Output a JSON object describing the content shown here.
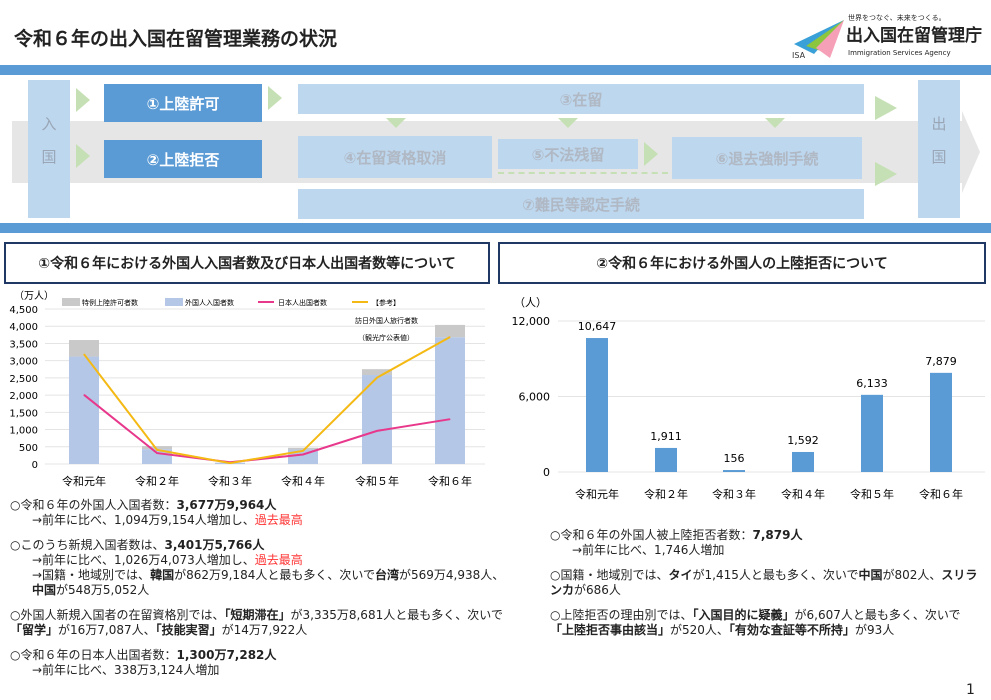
{
  "header": {
    "title": "令和６年の出入国在留管理業務の状況",
    "logo_tagline": "世界をつなぐ、未来をつくる。",
    "logo_name": "出入国在留管理庁",
    "logo_en": "Immigration Services Agency",
    "logo_abbr": "ISA"
  },
  "flow": {
    "entry": "入国",
    "exit": "出国",
    "s1": "①上陸許可",
    "s2": "②上陸拒否",
    "s3": "③在留",
    "s4": "④在留資格取消",
    "s5": "⑤不法残留",
    "s6": "⑥退去強制手続",
    "s7": "⑦難民等認定手続"
  },
  "section1": {
    "title": "①令和６年における外国人入国者数及び日本人出国者数等について",
    "bullets": [
      {
        "pre": "○令和６年の外国人入国者数：",
        "bold": "3,677万9,964人"
      },
      {
        "pre": "→前年に比べ、1,094万9,154人増加し、",
        "red": "過去最高"
      },
      {
        "pre": "○このうち新規入国者数は、",
        "bold": "3,401万5,766人"
      },
      {
        "pre": "→前年に比べ、1,026万4,073人増加し、",
        "red": "過去最高"
      },
      {
        "a": "→国籍・地域別では、",
        "b": "韓国",
        "c": "が862万9,184人と最も多く、次いで",
        "d": "台湾",
        "e": "が569万4,938人、",
        "f": "中国",
        "g": "が548万5,052人"
      },
      {
        "a": "○外国人新規入国者の在留資格別では、",
        "b": "「短期滞在」",
        "c": "が3,335万8,681人と最も多く、次いで",
        "d": "「留学」",
        "e": "が16万7,087人、",
        "f": "「技能実習」",
        "g": "が14万7,922人"
      },
      {
        "pre": "○令和６年の日本人出国者数：",
        "bold": "1,300万7,282人"
      },
      {
        "pre": "→前年に比べ、338万3,124人増加"
      }
    ]
  },
  "section2": {
    "title": "②令和６年における外国人の上陸拒否について",
    "bullets": [
      {
        "pre": "○令和６年の外国人被上陸拒否者数：",
        "bold": "7,879人"
      },
      {
        "pre": "→前年に比べ、1,746人増加"
      },
      {
        "a": "○国籍・地域別では、",
        "b": "タイ",
        "c": "が1,415人と最も多く、次いで",
        "d": "中国",
        "e": "が802人、",
        "f": "スリランカ",
        "g": "が686人"
      },
      {
        "a": "○上陸拒否の理由別では、",
        "b": "「入国目的に疑義」",
        "c": "が6,607人と最も多く、次いで",
        "d": "「上陸拒否事由該当」",
        "e": "が520人、",
        "f": "「有効な査証等不所持」",
        "g": "が93人"
      }
    ]
  },
  "page_number": "1",
  "chart_data": [
    {
      "type": "bar",
      "ylabel": "（万人）",
      "ylim": [
        0,
        4500
      ],
      "yticks": [
        "0",
        "500",
        "1,000",
        "1,500",
        "2,000",
        "2,500",
        "3,000",
        "3,500",
        "4,000",
        "4,500"
      ],
      "categories": [
        "令和元年",
        "令和２年",
        "令和３年",
        "令和４年",
        "令和５年",
        "令和６年"
      ],
      "annotation": [
        "訪日外国人旅行者数",
        "（観光庁公表値）"
      ],
      "grid": true,
      "legend": "top",
      "series": [
        {
          "name": "外国人入国者数",
          "kind": "bar",
          "color": "#b4c7e7",
          "values": [
            3119,
            430,
            35,
            420,
            2583,
            3678
          ]
        },
        {
          "name": "特例上陸許可者数",
          "kind": "bar-stacked",
          "color": "#c9c9c9",
          "values": [
            480,
            90,
            5,
            50,
            170,
            360
          ]
        },
        {
          "name": "日本人出国者数",
          "kind": "line",
          "color": "#e8388c",
          "values": [
            2008,
            317,
            51,
            277,
            962,
            1301
          ]
        },
        {
          "name": "【参考】",
          "kind": "line",
          "color": "#f4b913",
          "values": [
            3188,
            412,
            25,
            383,
            2507,
            3687
          ]
        }
      ]
    },
    {
      "type": "bar",
      "ylabel": "（人）",
      "ylim": [
        0,
        12000
      ],
      "yticks": [
        "0",
        "6,000",
        "12,000"
      ],
      "categories": [
        "令和元年",
        "令和２年",
        "令和３年",
        "令和４年",
        "令和５年",
        "令和６年"
      ],
      "values": [
        10647,
        1911,
        156,
        1592,
        6133,
        7879
      ],
      "labels": [
        "10,647",
        "1,911",
        "156",
        "1,592",
        "6,133",
        "7,879"
      ],
      "color": "#5b9bd5",
      "grid": true
    }
  ]
}
